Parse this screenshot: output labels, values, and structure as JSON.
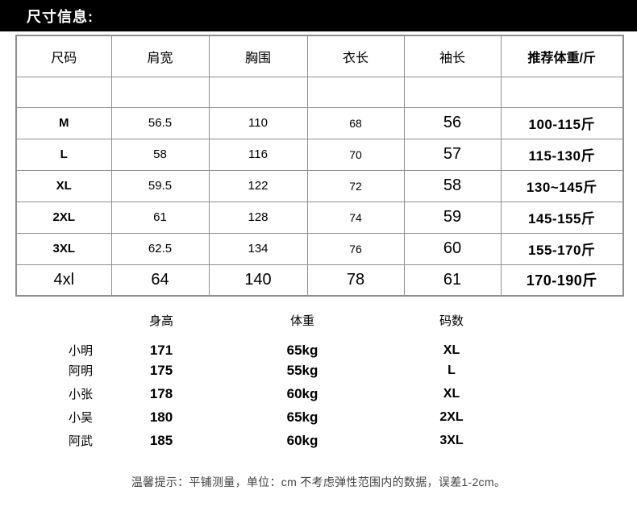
{
  "title": "尺寸信息:",
  "size_table": {
    "headers": [
      "尺码",
      "肩宽",
      "胸围",
      "衣长",
      "袖长",
      "推荐体重/斤"
    ],
    "spacer_row": [
      "",
      "",
      "",
      "",
      "",
      ""
    ],
    "rows": [
      [
        "M",
        "56.5",
        "110",
        "68",
        "56",
        "100-115斤"
      ],
      [
        "L",
        "58",
        "116",
        "70",
        "57",
        "115-130斤"
      ],
      [
        "XL",
        "59.5",
        "122",
        "72",
        "58",
        "130~145斤"
      ],
      [
        "2XL",
        "61",
        "128",
        "74",
        "59",
        "145-155斤"
      ],
      [
        "3XL",
        "62.5",
        "134",
        "76",
        "60",
        "155-170斤"
      ],
      [
        "4xl",
        "64",
        "140",
        "78",
        "61",
        "170-190斤"
      ]
    ]
  },
  "fit_table": {
    "headers": [
      "",
      "身高",
      "体重",
      "码数"
    ],
    "rows": [
      [
        "小明",
        "171",
        "65kg",
        "XL"
      ],
      [
        "阿明",
        "175",
        "55kg",
        "L"
      ],
      [
        "小张",
        "178",
        "60kg",
        "XL"
      ],
      [
        "小吴",
        "180",
        "65kg",
        "2XL"
      ],
      [
        "阿武",
        "185",
        "60kg",
        "3XL"
      ]
    ]
  },
  "note": "温馨提示：平铺测量，单位：cm 不考虑弹性范围内的数据，误差1-2cm。",
  "colors": {
    "banner_background": "#000000",
    "banner_text": "#ffffff",
    "table_border": "#8f8f8f",
    "note_text": "#434343"
  }
}
